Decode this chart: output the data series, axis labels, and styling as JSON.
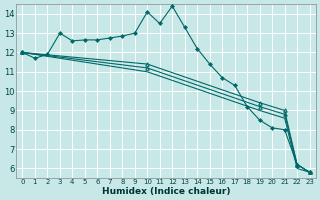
{
  "xlabel": "Humidex (Indice chaleur)",
  "bg_color": "#c8e8e8",
  "grid_color": "#ffffff",
  "line_color": "#006868",
  "xlim": [
    -0.5,
    23.5
  ],
  "ylim": [
    5.5,
    14.5
  ],
  "yticks": [
    6,
    7,
    8,
    9,
    10,
    11,
    12,
    13,
    14
  ],
  "xticks": [
    0,
    1,
    2,
    3,
    4,
    5,
    6,
    7,
    8,
    9,
    10,
    11,
    12,
    13,
    14,
    15,
    16,
    17,
    18,
    19,
    20,
    21,
    22,
    23
  ],
  "series_main": {
    "x": [
      0,
      1,
      2,
      3,
      4,
      5,
      6,
      7,
      8,
      9,
      10,
      11,
      12,
      13,
      14,
      15,
      16,
      17,
      18,
      19,
      20,
      21,
      22,
      23
    ],
    "y": [
      12.0,
      11.7,
      11.9,
      13.0,
      12.6,
      12.65,
      12.65,
      12.75,
      12.85,
      13.0,
      14.1,
      13.5,
      14.4,
      13.3,
      12.2,
      11.4,
      10.7,
      10.3,
      9.2,
      8.5,
      8.1,
      8.0,
      6.2,
      5.8
    ]
  },
  "series_line1": {
    "x": [
      0,
      10,
      19,
      21,
      22,
      23
    ],
    "y": [
      12.0,
      11.0,
      9.0,
      8.6,
      6.0,
      5.8
    ],
    "markers": false
  },
  "series_line2": {
    "x": [
      0,
      10,
      19,
      21,
      22,
      23
    ],
    "y": [
      12.0,
      11.2,
      9.2,
      8.8,
      6.2,
      5.8
    ],
    "markers": true
  },
  "series_line3": {
    "x": [
      0,
      10,
      19,
      21,
      22,
      23
    ],
    "y": [
      12.0,
      11.4,
      9.4,
      9.0,
      6.2,
      5.8
    ],
    "markers": true
  }
}
